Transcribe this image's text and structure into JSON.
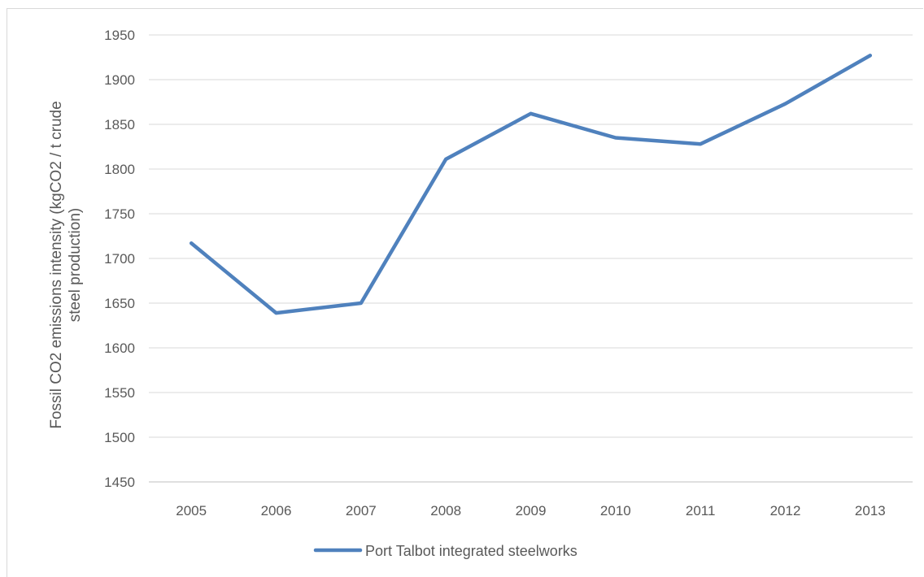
{
  "chart_data": {
    "type": "line",
    "title": "",
    "xlabel": "",
    "ylabel_lines": [
      "Fossil CO2 emissions intensity (kgCO2 / t crude",
      "steel production)"
    ],
    "categories": [
      "2005",
      "2006",
      "2007",
      "2008",
      "2009",
      "2010",
      "2011",
      "2012",
      "2013"
    ],
    "series": [
      {
        "name": "Port Talbot integrated steelworks",
        "color": "#4f81bd",
        "values": [
          1717,
          1639,
          1650,
          1811,
          1862,
          1835,
          1828,
          1873,
          1927
        ]
      }
    ],
    "ylim": [
      1450,
      1950
    ],
    "yticks": [
      "1450",
      "1500",
      "1550",
      "1600",
      "1650",
      "1700",
      "1750",
      "1800",
      "1850",
      "1900",
      "1950"
    ],
    "grid": true,
    "legend_position": "bottom"
  }
}
